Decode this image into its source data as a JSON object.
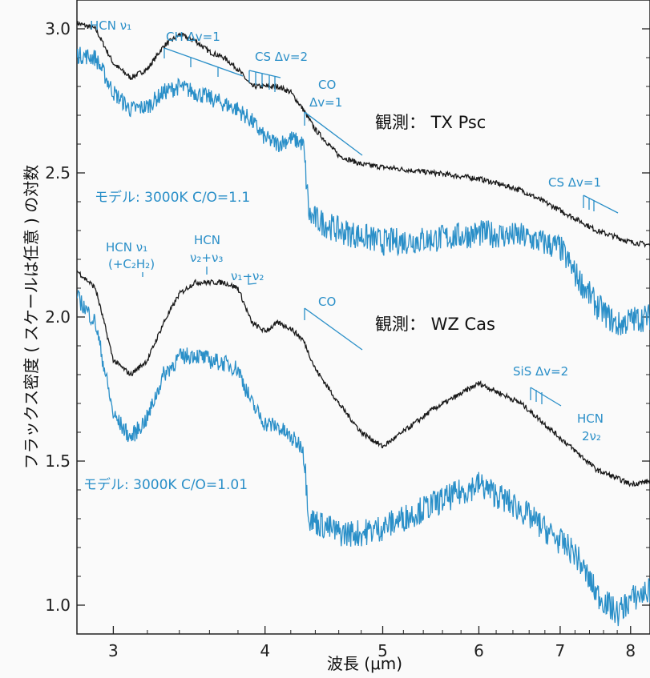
{
  "chart_data": {
    "type": "line",
    "title": "",
    "xlabel": "波長 (μm)",
    "ylabel": "フラックス密度 ( スケールは任意 ) の対数",
    "xscale": "log",
    "xlim": [
      2.8,
      8.3
    ],
    "ylim": [
      0.9,
      3.1
    ],
    "x_ticks": [
      "3",
      "4",
      "5",
      "6",
      "7",
      "8"
    ],
    "y_ticks": [
      "1.0",
      "1.5",
      "2.0",
      "2.5",
      "3.0"
    ],
    "colors": {
      "observed": "#1a1a1a",
      "model": "#2a8fc8"
    },
    "series": [
      {
        "name": "観測: TX Psc",
        "x": [
          2.8,
          2.9,
          3.0,
          3.1,
          3.2,
          3.3,
          3.4,
          3.5,
          3.6,
          3.7,
          3.8,
          3.9,
          4.0,
          4.1,
          4.2,
          4.3,
          4.4,
          4.6,
          4.8,
          5.0,
          5.5,
          6.0,
          6.5,
          7.0,
          7.5,
          8.0,
          8.3
        ],
        "y": [
          3.02,
          3.0,
          2.88,
          2.83,
          2.86,
          2.94,
          2.98,
          2.96,
          2.92,
          2.9,
          2.86,
          2.8,
          2.8,
          2.8,
          2.78,
          2.72,
          2.65,
          2.56,
          2.53,
          2.52,
          2.5,
          2.48,
          2.44,
          2.37,
          2.3,
          2.26,
          2.25
        ]
      },
      {
        "name": "モデル: 3000K C/O=1.1",
        "x": [
          2.8,
          2.9,
          3.0,
          3.1,
          3.2,
          3.3,
          3.4,
          3.5,
          3.6,
          3.7,
          3.8,
          3.9,
          4.0,
          4.1,
          4.2,
          4.3,
          4.35,
          4.6,
          4.8,
          5.0,
          5.5,
          6.0,
          6.5,
          7.0,
          7.2,
          7.5,
          7.8,
          8.0,
          8.3
        ],
        "y": [
          2.91,
          2.9,
          2.78,
          2.72,
          2.73,
          2.78,
          2.8,
          2.78,
          2.76,
          2.74,
          2.72,
          2.68,
          2.62,
          2.6,
          2.62,
          2.6,
          2.35,
          2.3,
          2.28,
          2.26,
          2.27,
          2.29,
          2.28,
          2.24,
          2.15,
          2.04,
          1.97,
          1.99,
          2.0
        ]
      },
      {
        "name": "観測: WZ Cas",
        "x": [
          2.8,
          2.9,
          3.0,
          3.1,
          3.2,
          3.3,
          3.4,
          3.5,
          3.6,
          3.7,
          3.8,
          3.9,
          4.0,
          4.1,
          4.2,
          4.3,
          4.4,
          4.6,
          4.8,
          5.0,
          5.5,
          6.0,
          6.5,
          7.0,
          7.5,
          8.0,
          8.3
        ],
        "y": [
          2.16,
          2.1,
          1.85,
          1.8,
          1.85,
          1.98,
          2.08,
          2.12,
          2.12,
          2.12,
          2.1,
          1.98,
          1.95,
          1.98,
          1.96,
          1.92,
          1.82,
          1.7,
          1.6,
          1.55,
          1.68,
          1.77,
          1.7,
          1.58,
          1.47,
          1.42,
          1.43
        ]
      },
      {
        "name": "モデル: 3000K C/O=1.01",
        "x": [
          2.8,
          2.9,
          3.0,
          3.1,
          3.2,
          3.3,
          3.4,
          3.5,
          3.6,
          3.7,
          3.8,
          3.9,
          4.0,
          4.1,
          4.2,
          4.3,
          4.35,
          4.6,
          4.8,
          5.0,
          5.5,
          6.0,
          6.5,
          7.0,
          7.2,
          7.5,
          7.8,
          8.0,
          8.3
        ],
        "y": [
          2.07,
          1.98,
          1.66,
          1.58,
          1.65,
          1.8,
          1.86,
          1.87,
          1.85,
          1.84,
          1.82,
          1.7,
          1.63,
          1.62,
          1.58,
          1.55,
          1.3,
          1.25,
          1.25,
          1.27,
          1.35,
          1.42,
          1.33,
          1.22,
          1.18,
          1.04,
          0.97,
          1.02,
          1.05
        ]
      }
    ],
    "labels": {
      "obs1": "観測：  TX Psc",
      "model1": "モデル:  3000K  C/O=1.1",
      "obs2": "観測：  WZ Cas",
      "model2": "モデル:  3000K  C/O=1.01"
    },
    "annotations": [
      "HCN ν₁",
      "CH Δv=1",
      "CS Δv=2",
      "CO",
      "Δv=1",
      "CS Δv=1",
      "HCN ν₁",
      "(+C₂H₂)",
      "HCN",
      "ν₂+ν₃",
      "ν₁−ν₂",
      "CO",
      "SiS Δv=2",
      "HCN",
      "2ν₂"
    ]
  }
}
